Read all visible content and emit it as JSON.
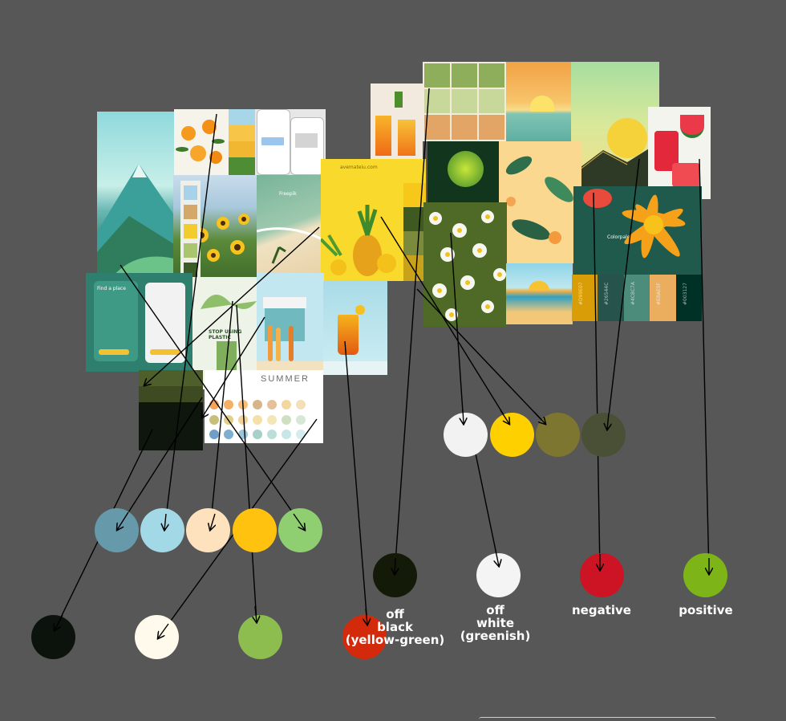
{
  "moodboard": {
    "url_text": "avemateiu.com",
    "summer_text": "SUMMER",
    "plastic_text": "STOP USING PLASTIC",
    "freepik_text": "Freepik",
    "colorpalette_text": "Colorpalette",
    "app_heading": "Find a place",
    "hex_codes_right": [
      "#D99E07",
      "#26544C",
      "#4C8C7A",
      "#EBAE5F",
      "#003127"
    ]
  },
  "swatches": [
    {
      "id": "grey-blue",
      "color": "#6699aa"
    },
    {
      "id": "light-blue",
      "color": "#a3d9e6"
    },
    {
      "id": "peach",
      "color": "#fde2bd"
    },
    {
      "id": "sunflower",
      "color": "#ffc20e"
    },
    {
      "id": "light-green",
      "color": "#8fcf72"
    },
    {
      "id": "black",
      "color": "#0c120c"
    },
    {
      "id": "cream",
      "color": "#fffaeb"
    },
    {
      "id": "green",
      "color": "#8dbd4e"
    },
    {
      "id": "red-orange",
      "color": "#d42a0c"
    },
    {
      "id": "off-black",
      "color": "#141a08"
    },
    {
      "id": "off-white",
      "color": "#f4f4f4"
    },
    {
      "id": "negative",
      "color": "#cc1425"
    },
    {
      "id": "positive",
      "color": "#7db518"
    },
    {
      "id": "white-2",
      "color": "#f2f2f2"
    },
    {
      "id": "yellow",
      "color": "#ffd000"
    },
    {
      "id": "olive",
      "color": "#7d7630"
    },
    {
      "id": "dark-olive",
      "color": "#4a5035"
    }
  ],
  "labels": {
    "off_black": "off\nblack\n(yellow-green)",
    "off_white": "off\nwhite\n(greenish)",
    "negative": "negative",
    "positive": "positive"
  }
}
